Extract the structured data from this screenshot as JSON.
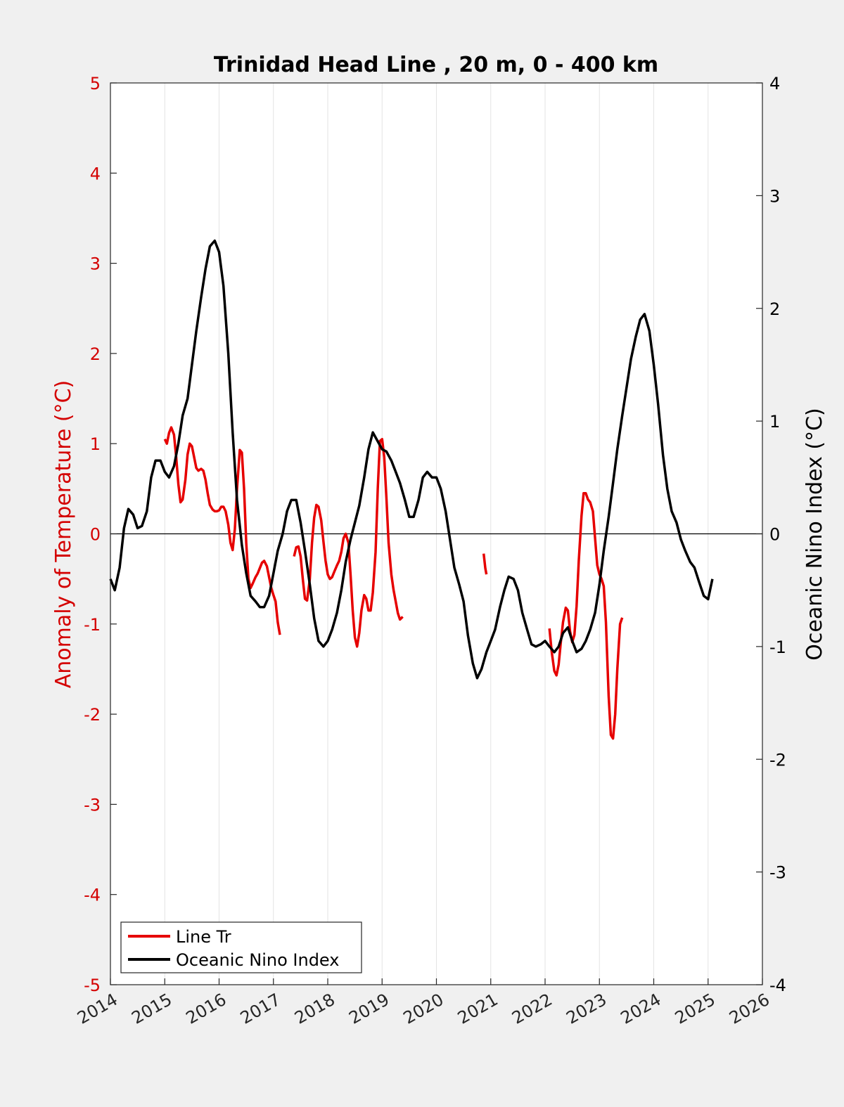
{
  "chart_data": {
    "type": "line",
    "title": "Trinidad Head Line , 20 m, 0 - 400 km",
    "xlabel": "",
    "ylabel_left": "Anomaly of Temperature (°C)",
    "ylabel_right": "Oceanic Nino Index (°C)",
    "xlim": [
      2014,
      2026
    ],
    "ylim_left": [
      -5,
      5
    ],
    "ylim_right": [
      -4,
      4
    ],
    "x_ticks": [
      2014,
      2015,
      2016,
      2017,
      2018,
      2019,
      2020,
      2021,
      2022,
      2023,
      2024,
      2025,
      2026
    ],
    "y_ticks_left": [
      5,
      4,
      3,
      2,
      1,
      0,
      -1,
      -2,
      -3,
      -4,
      -5
    ],
    "y_ticks_right": [
      4,
      3,
      2,
      1,
      0,
      -1,
      -2,
      -3,
      -4
    ],
    "grid": "vertical",
    "legend_position": "bottom-left",
    "colors": {
      "left_axis": "#d40000",
      "line_tr": "#e60000",
      "oni": "#000000"
    },
    "series": [
      {
        "name": "Line Tr",
        "axis": "left",
        "segments": [
          [
            [
              2015.0,
              1.05
            ],
            [
              2015.04,
              1.0
            ],
            [
              2015.08,
              1.12
            ],
            [
              2015.12,
              1.18
            ],
            [
              2015.17,
              1.1
            ],
            [
              2015.21,
              0.85
            ],
            [
              2015.25,
              0.55
            ],
            [
              2015.29,
              0.35
            ],
            [
              2015.33,
              0.38
            ],
            [
              2015.38,
              0.6
            ],
            [
              2015.42,
              0.88
            ],
            [
              2015.46,
              1.0
            ],
            [
              2015.5,
              0.97
            ],
            [
              2015.54,
              0.85
            ],
            [
              2015.58,
              0.73
            ],
            [
              2015.62,
              0.7
            ],
            [
              2015.67,
              0.72
            ],
            [
              2015.71,
              0.7
            ],
            [
              2015.75,
              0.6
            ],
            [
              2015.79,
              0.45
            ],
            [
              2015.83,
              0.32
            ],
            [
              2015.88,
              0.27
            ],
            [
              2015.92,
              0.25
            ],
            [
              2015.96,
              0.25
            ],
            [
              2016.0,
              0.26
            ],
            [
              2016.04,
              0.3
            ],
            [
              2016.08,
              0.3
            ],
            [
              2016.12,
              0.25
            ],
            [
              2016.17,
              0.1
            ],
            [
              2016.21,
              -0.1
            ],
            [
              2016.25,
              -0.18
            ],
            [
              2016.29,
              0.05
            ],
            [
              2016.33,
              0.5
            ],
            [
              2016.38,
              0.93
            ],
            [
              2016.42,
              0.9
            ],
            [
              2016.46,
              0.5
            ],
            [
              2016.5,
              -0.1
            ],
            [
              2016.54,
              -0.5
            ],
            [
              2016.58,
              -0.6
            ],
            [
              2016.62,
              -0.55
            ],
            [
              2016.67,
              -0.48
            ],
            [
              2016.71,
              -0.44
            ],
            [
              2016.75,
              -0.38
            ],
            [
              2016.79,
              -0.32
            ],
            [
              2016.83,
              -0.3
            ],
            [
              2016.88,
              -0.36
            ],
            [
              2016.92,
              -0.48
            ],
            [
              2016.96,
              -0.6
            ],
            [
              2017.0,
              -0.68
            ],
            [
              2017.04,
              -0.75
            ],
            [
              2017.08,
              -0.98
            ],
            [
              2017.12,
              -1.12
            ]
          ],
          [
            [
              2017.38,
              -0.25
            ],
            [
              2017.42,
              -0.15
            ],
            [
              2017.46,
              -0.14
            ],
            [
              2017.5,
              -0.25
            ],
            [
              2017.54,
              -0.5
            ],
            [
              2017.58,
              -0.72
            ],
            [
              2017.62,
              -0.74
            ],
            [
              2017.67,
              -0.5
            ],
            [
              2017.71,
              -0.1
            ],
            [
              2017.75,
              0.18
            ],
            [
              2017.79,
              0.32
            ],
            [
              2017.83,
              0.3
            ],
            [
              2017.88,
              0.15
            ],
            [
              2017.92,
              -0.08
            ],
            [
              2017.96,
              -0.3
            ],
            [
              2018.0,
              -0.45
            ],
            [
              2018.04,
              -0.5
            ],
            [
              2018.08,
              -0.48
            ],
            [
              2018.12,
              -0.42
            ],
            [
              2018.17,
              -0.35
            ],
            [
              2018.21,
              -0.3
            ],
            [
              2018.25,
              -0.2
            ],
            [
              2018.29,
              -0.05
            ],
            [
              2018.33,
              0.0
            ],
            [
              2018.38,
              -0.1
            ],
            [
              2018.42,
              -0.45
            ],
            [
              2018.46,
              -0.85
            ],
            [
              2018.5,
              -1.15
            ],
            [
              2018.54,
              -1.25
            ],
            [
              2018.58,
              -1.1
            ],
            [
              2018.62,
              -0.85
            ],
            [
              2018.67,
              -0.68
            ],
            [
              2018.71,
              -0.72
            ],
            [
              2018.75,
              -0.85
            ],
            [
              2018.79,
              -0.85
            ],
            [
              2018.83,
              -0.65
            ],
            [
              2018.88,
              -0.2
            ],
            [
              2018.92,
              0.5
            ],
            [
              2018.96,
              1.03
            ],
            [
              2019.0,
              1.05
            ],
            [
              2019.04,
              0.85
            ],
            [
              2019.08,
              0.4
            ],
            [
              2019.12,
              -0.1
            ],
            [
              2019.17,
              -0.45
            ],
            [
              2019.21,
              -0.62
            ],
            [
              2019.25,
              -0.75
            ],
            [
              2019.29,
              -0.88
            ],
            [
              2019.33,
              -0.95
            ],
            [
              2019.38,
              -0.92
            ]
          ],
          [
            [
              2020.87,
              -0.22
            ],
            [
              2020.9,
              -0.38
            ],
            [
              2020.92,
              -0.45
            ]
          ],
          [
            [
              2022.08,
              -1.05
            ],
            [
              2022.12,
              -1.3
            ],
            [
              2022.17,
              -1.52
            ],
            [
              2022.21,
              -1.57
            ],
            [
              2022.25,
              -1.45
            ],
            [
              2022.29,
              -1.2
            ],
            [
              2022.33,
              -0.98
            ],
            [
              2022.38,
              -0.82
            ],
            [
              2022.42,
              -0.85
            ],
            [
              2022.46,
              -1.08
            ],
            [
              2022.5,
              -1.2
            ],
            [
              2022.54,
              -1.12
            ],
            [
              2022.58,
              -0.8
            ],
            [
              2022.62,
              -0.3
            ],
            [
              2022.67,
              0.2
            ],
            [
              2022.71,
              0.45
            ],
            [
              2022.75,
              0.45
            ],
            [
              2022.79,
              0.38
            ],
            [
              2022.83,
              0.35
            ],
            [
              2022.88,
              0.25
            ],
            [
              2022.92,
              -0.05
            ],
            [
              2022.96,
              -0.35
            ],
            [
              2023.0,
              -0.45
            ],
            [
              2023.04,
              -0.5
            ],
            [
              2023.08,
              -0.58
            ],
            [
              2023.12,
              -0.98
            ],
            [
              2023.17,
              -1.8
            ],
            [
              2023.21,
              -2.23
            ],
            [
              2023.25,
              -2.27
            ],
            [
              2023.29,
              -2.0
            ],
            [
              2023.33,
              -1.5
            ],
            [
              2023.38,
              -1.0
            ],
            [
              2023.42,
              -0.93
            ]
          ]
        ]
      },
      {
        "name": "Oceanic Nino Index",
        "axis": "right",
        "points": [
          [
            2014.0,
            -0.4
          ],
          [
            2014.08,
            -0.5
          ],
          [
            2014.17,
            -0.3
          ],
          [
            2014.25,
            0.05
          ],
          [
            2014.33,
            0.22
          ],
          [
            2014.42,
            0.17
          ],
          [
            2014.5,
            0.05
          ],
          [
            2014.58,
            0.07
          ],
          [
            2014.67,
            0.2
          ],
          [
            2014.75,
            0.5
          ],
          [
            2014.83,
            0.65
          ],
          [
            2014.92,
            0.65
          ],
          [
            2015.0,
            0.55
          ],
          [
            2015.08,
            0.5
          ],
          [
            2015.17,
            0.6
          ],
          [
            2015.25,
            0.8
          ],
          [
            2015.33,
            1.05
          ],
          [
            2015.42,
            1.2
          ],
          [
            2015.5,
            1.5
          ],
          [
            2015.58,
            1.8
          ],
          [
            2015.67,
            2.1
          ],
          [
            2015.75,
            2.35
          ],
          [
            2015.83,
            2.55
          ],
          [
            2015.92,
            2.6
          ],
          [
            2016.0,
            2.5
          ],
          [
            2016.08,
            2.2
          ],
          [
            2016.17,
            1.6
          ],
          [
            2016.25,
            0.9
          ],
          [
            2016.33,
            0.3
          ],
          [
            2016.42,
            -0.1
          ],
          [
            2016.5,
            -0.35
          ],
          [
            2016.58,
            -0.55
          ],
          [
            2016.67,
            -0.6
          ],
          [
            2016.75,
            -0.65
          ],
          [
            2016.83,
            -0.65
          ],
          [
            2016.92,
            -0.55
          ],
          [
            2017.0,
            -0.35
          ],
          [
            2017.08,
            -0.15
          ],
          [
            2017.17,
            0.0
          ],
          [
            2017.25,
            0.2
          ],
          [
            2017.33,
            0.3
          ],
          [
            2017.42,
            0.3
          ],
          [
            2017.5,
            0.1
          ],
          [
            2017.58,
            -0.15
          ],
          [
            2017.67,
            -0.45
          ],
          [
            2017.75,
            -0.75
          ],
          [
            2017.83,
            -0.95
          ],
          [
            2017.92,
            -1.0
          ],
          [
            2018.0,
            -0.95
          ],
          [
            2018.08,
            -0.85
          ],
          [
            2018.17,
            -0.7
          ],
          [
            2018.25,
            -0.5
          ],
          [
            2018.33,
            -0.25
          ],
          [
            2018.42,
            -0.05
          ],
          [
            2018.5,
            0.1
          ],
          [
            2018.58,
            0.25
          ],
          [
            2018.67,
            0.5
          ],
          [
            2018.75,
            0.75
          ],
          [
            2018.83,
            0.9
          ],
          [
            2018.92,
            0.82
          ],
          [
            2019.0,
            0.75
          ],
          [
            2019.08,
            0.73
          ],
          [
            2019.17,
            0.65
          ],
          [
            2019.25,
            0.55
          ],
          [
            2019.33,
            0.45
          ],
          [
            2019.42,
            0.3
          ],
          [
            2019.5,
            0.15
          ],
          [
            2019.58,
            0.15
          ],
          [
            2019.67,
            0.3
          ],
          [
            2019.75,
            0.5
          ],
          [
            2019.83,
            0.55
          ],
          [
            2019.92,
            0.5
          ],
          [
            2020.0,
            0.5
          ],
          [
            2020.08,
            0.4
          ],
          [
            2020.17,
            0.2
          ],
          [
            2020.25,
            -0.05
          ],
          [
            2020.33,
            -0.3
          ],
          [
            2020.42,
            -0.45
          ],
          [
            2020.5,
            -0.6
          ],
          [
            2020.58,
            -0.9
          ],
          [
            2020.67,
            -1.15
          ],
          [
            2020.75,
            -1.28
          ],
          [
            2020.83,
            -1.2
          ],
          [
            2020.92,
            -1.05
          ],
          [
            2021.0,
            -0.95
          ],
          [
            2021.08,
            -0.85
          ],
          [
            2021.17,
            -0.65
          ],
          [
            2021.25,
            -0.5
          ],
          [
            2021.33,
            -0.38
          ],
          [
            2021.42,
            -0.4
          ],
          [
            2021.5,
            -0.5
          ],
          [
            2021.58,
            -0.7
          ],
          [
            2021.67,
            -0.85
          ],
          [
            2021.75,
            -0.98
          ],
          [
            2021.83,
            -1.0
          ],
          [
            2021.92,
            -0.98
          ],
          [
            2022.0,
            -0.95
          ],
          [
            2022.08,
            -1.0
          ],
          [
            2022.17,
            -1.05
          ],
          [
            2022.25,
            -1.0
          ],
          [
            2022.33,
            -0.88
          ],
          [
            2022.42,
            -0.83
          ],
          [
            2022.5,
            -0.95
          ],
          [
            2022.58,
            -1.05
          ],
          [
            2022.67,
            -1.02
          ],
          [
            2022.75,
            -0.95
          ],
          [
            2022.83,
            -0.85
          ],
          [
            2022.92,
            -0.7
          ],
          [
            2023.0,
            -0.45
          ],
          [
            2023.08,
            -0.15
          ],
          [
            2023.17,
            0.15
          ],
          [
            2023.25,
            0.45
          ],
          [
            2023.33,
            0.75
          ],
          [
            2023.42,
            1.05
          ],
          [
            2023.5,
            1.3
          ],
          [
            2023.58,
            1.55
          ],
          [
            2023.67,
            1.75
          ],
          [
            2023.75,
            1.9
          ],
          [
            2023.83,
            1.95
          ],
          [
            2023.92,
            1.8
          ],
          [
            2024.0,
            1.5
          ],
          [
            2024.08,
            1.15
          ],
          [
            2024.17,
            0.7
          ],
          [
            2024.25,
            0.4
          ],
          [
            2024.33,
            0.2
          ],
          [
            2024.42,
            0.1
          ],
          [
            2024.5,
            -0.05
          ],
          [
            2024.58,
            -0.15
          ],
          [
            2024.67,
            -0.25
          ],
          [
            2024.75,
            -0.3
          ],
          [
            2024.83,
            -0.42
          ],
          [
            2024.92,
            -0.55
          ],
          [
            2025.0,
            -0.58
          ],
          [
            2025.08,
            -0.4
          ]
        ]
      }
    ]
  },
  "legend": {
    "items": [
      "Line Tr",
      "Oceanic Nino Index"
    ]
  }
}
